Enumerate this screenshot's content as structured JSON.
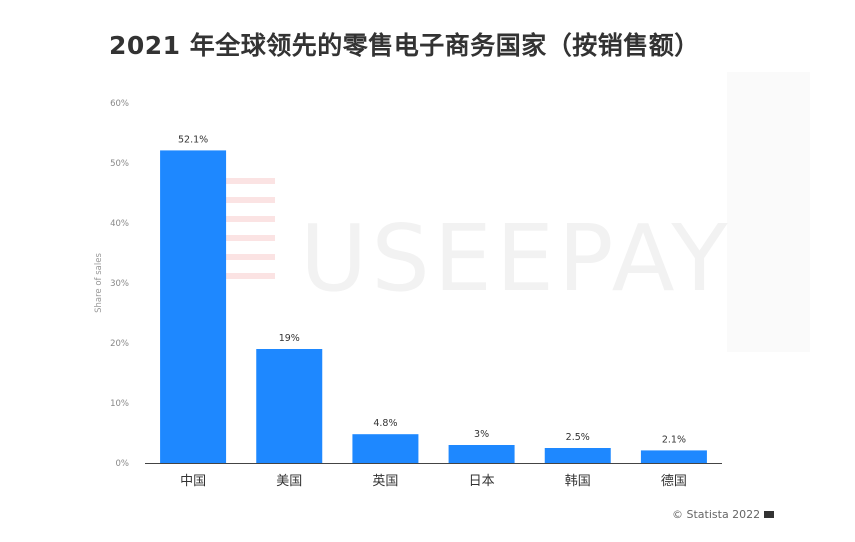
{
  "chart_data": {
    "type": "bar",
    "title": "2021 年全球领先的零售电子商务国家（按销售额）",
    "ylabel": "Share of sales",
    "xlabel": "",
    "categories": [
      "中国",
      "美国",
      "英国",
      "日本",
      "韩国",
      "德国"
    ],
    "values": [
      52.1,
      19,
      4.8,
      3,
      2.5,
      2.1
    ],
    "value_labels": [
      "52.1%",
      "19%",
      "4.8%",
      "3%",
      "2.5%",
      "2.1%"
    ],
    "ylim": [
      0,
      60
    ],
    "yticks": [
      0,
      10,
      20,
      30,
      40,
      50,
      60
    ],
    "ytick_labels": [
      "0%",
      "10%",
      "20%",
      "30%",
      "40%",
      "50%",
      "60%"
    ],
    "grid": false,
    "bar_color": "#1e88ff"
  },
  "watermark": "USEEPAY",
  "credit": {
    "text": "© Statista 2022",
    "icon": "flag-icon"
  }
}
